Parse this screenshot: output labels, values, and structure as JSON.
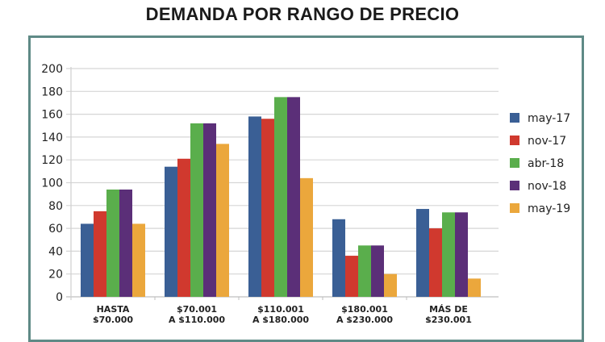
{
  "chart_data": {
    "type": "bar",
    "title": "DEMANDA POR RANGO DE PRECIO",
    "xlabel": "",
    "ylabel": "",
    "ylim": [
      0,
      200
    ],
    "yticks": [
      "0",
      "20",
      "40",
      "60",
      "80",
      "100",
      "120",
      "140",
      "160",
      "180",
      "200"
    ],
    "grid": true,
    "legend_position": "right",
    "categories": [
      [
        "HASTA",
        "$70.000"
      ],
      [
        "$70.001",
        "A $110.000"
      ],
      [
        "$110.001",
        "A $180.000"
      ],
      [
        "$180.001",
        "A $230.000"
      ],
      [
        "MÁS DE",
        "$230.001"
      ]
    ],
    "series": [
      {
        "name": "may-17",
        "color": "#3a5f95",
        "values": [
          64,
          114,
          158,
          68,
          77
        ]
      },
      {
        "name": "nov-17",
        "color": "#d0392e",
        "values": [
          75,
          121,
          156,
          36,
          60
        ]
      },
      {
        "name": "abr-18",
        "color": "#5aae4c",
        "values": [
          94,
          152,
          175,
          45,
          74
        ]
      },
      {
        "name": "nov-18",
        "color": "#5b2f78",
        "values": [
          94,
          152,
          175,
          45,
          74
        ]
      },
      {
        "name": "may-19",
        "color": "#eba73c",
        "values": [
          64,
          134,
          104,
          20,
          16
        ]
      }
    ]
  },
  "frame_color": "#5f8a86"
}
